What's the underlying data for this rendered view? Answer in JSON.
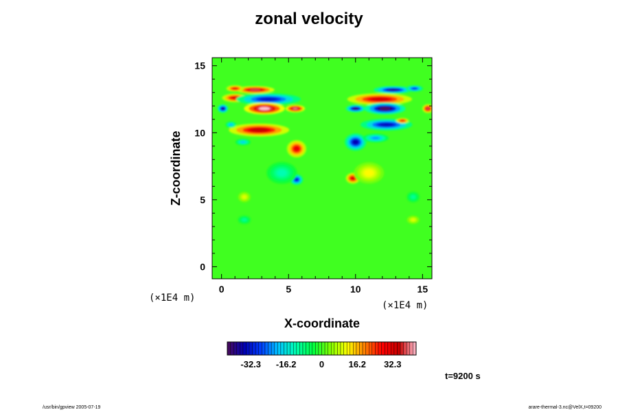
{
  "chart_data": {
    "type": "heatmap",
    "title": "zonal velocity",
    "xlabel": "X-coordinate",
    "ylabel": "Z-coordinate",
    "x_unit": "(×1E4 m)",
    "y_unit": "(×1E4 m)",
    "xlim": [
      -0.7,
      15.7
    ],
    "ylim": [
      -0.9,
      15.6
    ],
    "x_ticks": [
      0,
      5,
      10,
      15
    ],
    "y_ticks": [
      0,
      5,
      10,
      15
    ],
    "colorbar": {
      "range": [
        -43,
        43
      ],
      "ticks": [
        -32.3,
        -16.2,
        0,
        16.2,
        32.3
      ],
      "tick_labels": [
        "-32.3",
        "-16.2",
        "0",
        "16.2",
        "32.3"
      ],
      "colors": [
        "#4a0a5a",
        "#0000b4",
        "#0040ff",
        "#00c8ff",
        "#00ffb0",
        "#00ff40",
        "#80ff00",
        "#ffff00",
        "#ff8000",
        "#ff0000",
        "#c80000",
        "#ffc0d0"
      ]
    },
    "background_value": 0,
    "features": [
      {
        "x": 2.5,
        "z": 13.2,
        "rx": 1.8,
        "rz": 0.35,
        "v": 38
      },
      {
        "x": 1.0,
        "z": 13.3,
        "rx": 0.8,
        "rz": 0.3,
        "v": 30
      },
      {
        "x": 1.0,
        "z": 12.6,
        "rx": 1.2,
        "rz": 0.4,
        "v": 32
      },
      {
        "x": 3.5,
        "z": 12.5,
        "rx": 3.0,
        "rz": 0.55,
        "v": -33
      },
      {
        "x": 3.2,
        "z": 11.8,
        "rx": 1.9,
        "rz": 0.55,
        "v": 43
      },
      {
        "x": 5.5,
        "z": 11.8,
        "rx": 0.9,
        "rz": 0.35,
        "v": 40
      },
      {
        "x": 0.1,
        "z": 11.8,
        "rx": 0.5,
        "rz": 0.4,
        "v": -38
      },
      {
        "x": 2.8,
        "z": 10.2,
        "rx": 2.8,
        "rz": 0.6,
        "v": 35
      },
      {
        "x": 5.6,
        "z": 8.8,
        "rx": 0.9,
        "rz": 0.8,
        "v": 30
      },
      {
        "x": 0.7,
        "z": 10.6,
        "rx": 0.5,
        "rz": 0.3,
        "v": -20
      },
      {
        "x": 1.6,
        "z": 9.3,
        "rx": 0.7,
        "rz": 0.3,
        "v": -18
      },
      {
        "x": 5.6,
        "z": 6.5,
        "rx": 0.6,
        "rz": 0.5,
        "v": -32
      },
      {
        "x": 4.5,
        "z": 7.0,
        "rx": 1.4,
        "rz": 1.0,
        "v": -12
      },
      {
        "x": 12.8,
        "z": 13.2,
        "rx": 1.8,
        "rz": 0.35,
        "v": -38
      },
      {
        "x": 14.4,
        "z": 13.3,
        "rx": 0.8,
        "rz": 0.3,
        "v": -30
      },
      {
        "x": 11.8,
        "z": 12.5,
        "rx": 3.0,
        "rz": 0.55,
        "v": 33
      },
      {
        "x": 12.2,
        "z": 11.8,
        "rx": 1.9,
        "rz": 0.55,
        "v": -43
      },
      {
        "x": 10.0,
        "z": 11.8,
        "rx": 0.9,
        "rz": 0.35,
        "v": -40
      },
      {
        "x": 15.4,
        "z": 11.8,
        "rx": 0.5,
        "rz": 0.4,
        "v": 38
      },
      {
        "x": 12.3,
        "z": 10.6,
        "rx": 2.4,
        "rz": 0.55,
        "v": -34
      },
      {
        "x": 13.5,
        "z": 10.9,
        "rx": 0.6,
        "rz": 0.25,
        "v": 30
      },
      {
        "x": 10.0,
        "z": 9.3,
        "rx": 1.0,
        "rz": 0.8,
        "v": -35
      },
      {
        "x": 11.5,
        "z": 9.6,
        "rx": 1.2,
        "rz": 0.4,
        "v": -22
      },
      {
        "x": 9.8,
        "z": 6.6,
        "rx": 0.65,
        "rz": 0.5,
        "v": 32
      },
      {
        "x": 11.0,
        "z": 7.0,
        "rx": 1.4,
        "rz": 1.0,
        "v": 12
      },
      {
        "x": 1.7,
        "z": 5.2,
        "rx": 0.6,
        "rz": 0.5,
        "v": 10
      },
      {
        "x": 14.3,
        "z": 5.2,
        "rx": 0.6,
        "rz": 0.5,
        "v": -10
      },
      {
        "x": 1.7,
        "z": 3.5,
        "rx": 0.6,
        "rz": 0.4,
        "v": -10
      },
      {
        "x": 14.3,
        "z": 3.5,
        "rx": 0.6,
        "rz": 0.4,
        "v": 10
      }
    ]
  },
  "time_label": "t=9200 s",
  "footer_left": "/usr/bin/gpview 2005-07-19",
  "footer_right": "arare-thermal-3.nc@VelX,t=09200"
}
